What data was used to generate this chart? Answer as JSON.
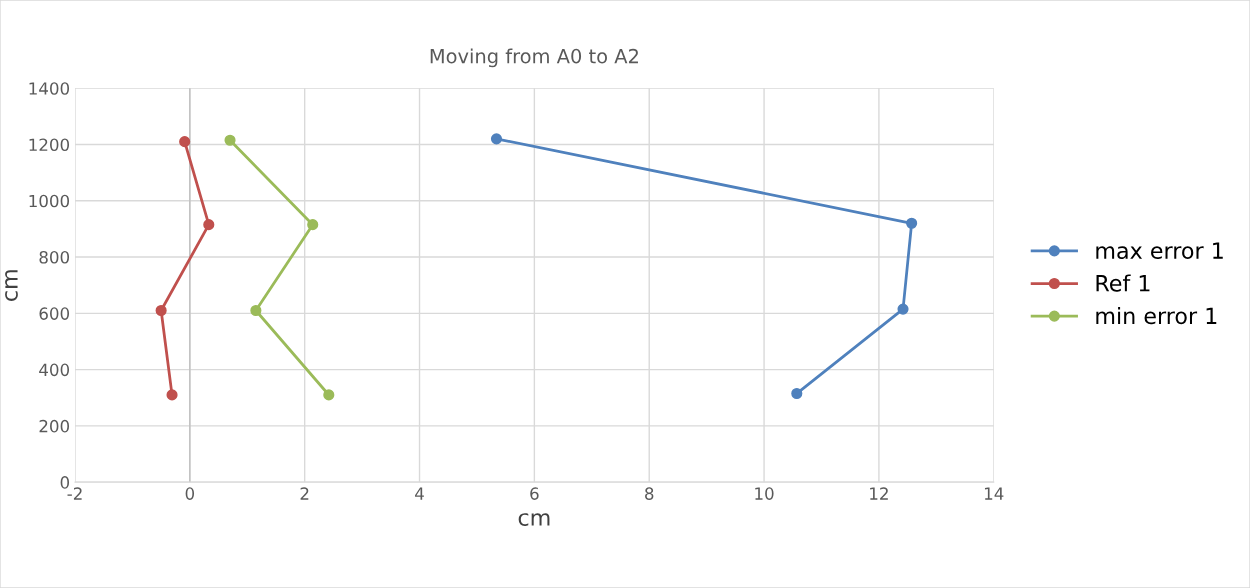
{
  "chart_data": {
    "type": "line",
    "title": "Moving from A0 to A2",
    "xlabel": "cm",
    "ylabel": "cm",
    "xlim": [
      -2,
      14
    ],
    "xticks": [
      -2,
      0,
      2,
      4,
      6,
      8,
      10,
      12,
      14
    ],
    "ylim": [
      0,
      1400
    ],
    "yticks": [
      0,
      200,
      400,
      600,
      800,
      1000,
      1200,
      1400
    ],
    "grid": true,
    "legend": "right",
    "marker": "circle",
    "line_style": "solid",
    "series": [
      {
        "name": "max error 1",
        "color": "#4f81bd",
        "x": [
          5.34,
          12.57,
          12.42,
          10.57
        ],
        "values": [
          1220,
          920,
          615,
          315
        ]
      },
      {
        "name": "Ref 1",
        "color": "#c0504d",
        "x": [
          -0.09,
          0.33,
          -0.5,
          -0.31
        ],
        "values": [
          1210,
          915,
          610,
          310
        ]
      },
      {
        "name": "min error 1",
        "color": "#9bbb59",
        "x": [
          0.7,
          2.14,
          1.15,
          2.42
        ],
        "values": [
          1215,
          915,
          610,
          310
        ]
      }
    ]
  }
}
